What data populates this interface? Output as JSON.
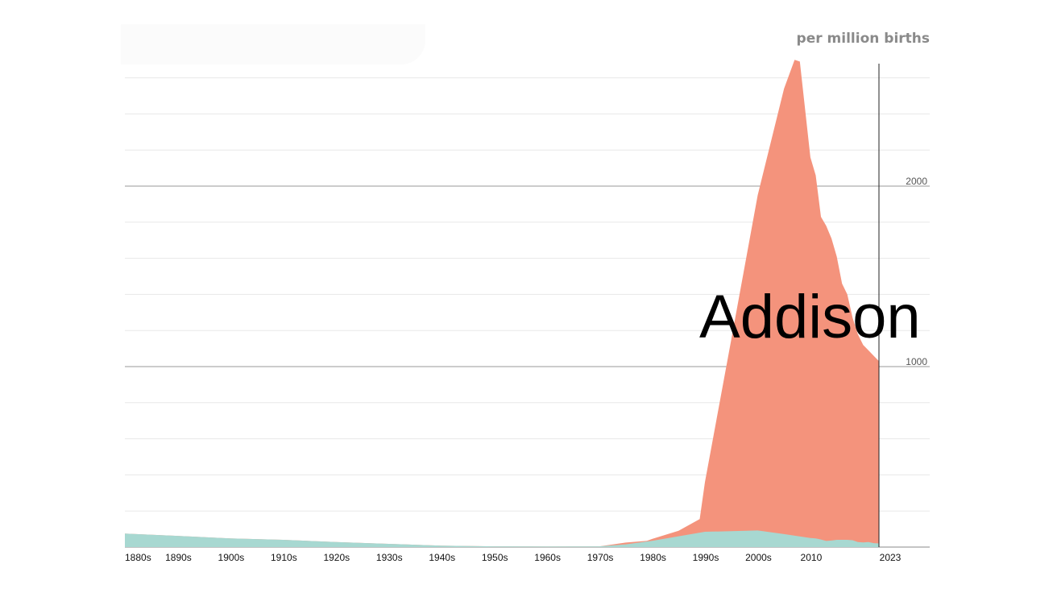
{
  "chart_data": {
    "type": "area",
    "subject_name": "Addison",
    "unit_label": "per million births",
    "x_tick_labels": [
      "1880s",
      "1890s",
      "1900s",
      "1910s",
      "1920s",
      "1930s",
      "1940s",
      "1950s",
      "1960s",
      "1970s",
      "1980s",
      "1990s",
      "2000s",
      "2010",
      "2023"
    ],
    "x_tick_years": [
      1880,
      1890,
      1900,
      1910,
      1920,
      1930,
      1940,
      1950,
      1960,
      1970,
      1980,
      1990,
      2000,
      2010,
      2023
    ],
    "xlim": [
      1880,
      2023
    ],
    "ylim": [
      0,
      2700
    ],
    "y_tick_labels": [
      "2000",
      "1000"
    ],
    "y_tick_values": [
      2000,
      1000
    ],
    "y_minor_step": 200,
    "current_year_marker": 2023,
    "series": [
      {
        "key": "girls",
        "color": "#f4937c",
        "x": [
          1880,
          1890,
          1900,
          1910,
          1920,
          1930,
          1940,
          1950,
          1960,
          1970,
          1975,
          1979,
          1980,
          1985,
          1989,
          1990,
          1995,
          2000,
          2005,
          2007,
          2008,
          2010,
          2011,
          2012,
          2013,
          2014,
          2015,
          2016,
          2017,
          2018,
          2019,
          2020,
          2021,
          2022,
          2023
        ],
        "values": [
          75,
          62,
          48,
          40,
          28,
          18,
          8,
          4,
          3,
          4,
          25,
          35,
          45,
          90,
          155,
          360,
          1150,
          1950,
          2540,
          2700,
          2690,
          2160,
          2060,
          1830,
          1780,
          1710,
          1610,
          1460,
          1400,
          1270,
          1180,
          1120,
          1090,
          1060,
          1030
        ]
      },
      {
        "key": "boys",
        "color": "#a7d8d1",
        "x": [
          1880,
          1890,
          1900,
          1910,
          1920,
          1930,
          1940,
          1950,
          1960,
          1970,
          1975,
          1980,
          1985,
          1990,
          1995,
          2000,
          2005,
          2010,
          2011,
          2012,
          2013,
          2014,
          2015,
          2016,
          2017,
          2018,
          2019,
          2020,
          2021,
          2022,
          2023
        ],
        "values": [
          75,
          62,
          48,
          40,
          28,
          18,
          8,
          4,
          3,
          4,
          15,
          35,
          60,
          85,
          88,
          92,
          72,
          50,
          48,
          42,
          34,
          36,
          40,
          40,
          40,
          38,
          28,
          26,
          28,
          22,
          20
        ]
      }
    ]
  }
}
